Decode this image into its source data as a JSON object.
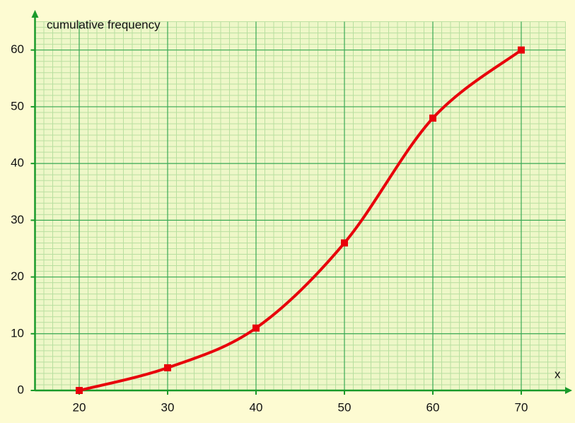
{
  "chart_data": {
    "type": "line",
    "y_label": "cumulative frequency",
    "x_label": "x",
    "x": [
      20,
      30,
      40,
      50,
      60,
      70
    ],
    "series": [
      {
        "name": "cumulative frequency",
        "color": "#e8000b",
        "values": [
          0,
          4,
          11,
          26,
          48,
          60
        ]
      }
    ],
    "xlim": [
      15,
      75
    ],
    "ylim": [
      0,
      65
    ],
    "xticks": [
      20,
      30,
      40,
      50,
      60,
      70
    ],
    "yticks": [
      0,
      10,
      20,
      30,
      40,
      50,
      60
    ],
    "grid": true,
    "minor_grid": true,
    "smooth": true,
    "markers": true
  }
}
